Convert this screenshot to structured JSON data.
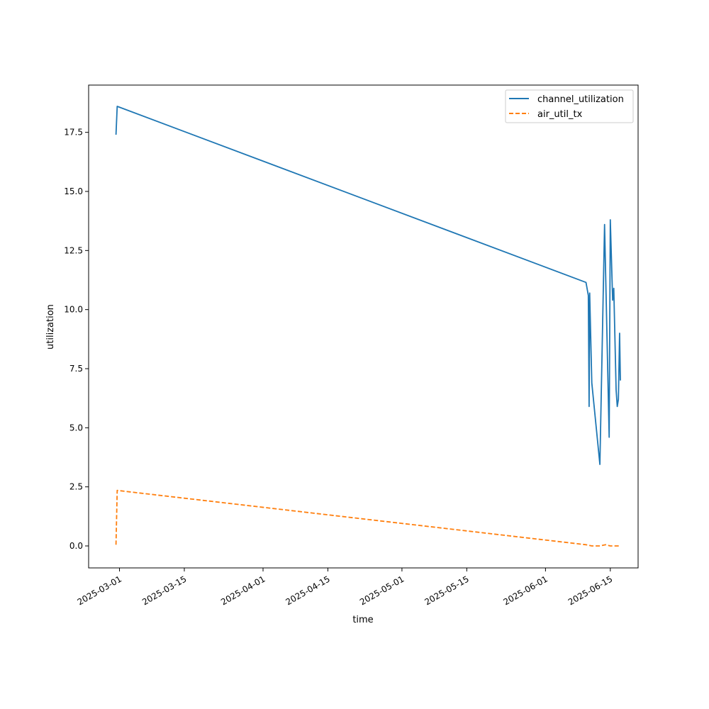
{
  "chart_data": {
    "type": "line",
    "title": "",
    "xlabel": "time",
    "ylabel": "utilization",
    "xlim": [
      "2025-02-22T08:00",
      "2025-06-21T00:00"
    ],
    "ylim": [
      -0.93,
      19.5
    ],
    "xticks": [
      "2025-03-01",
      "2025-03-15",
      "2025-04-01",
      "2025-04-15",
      "2025-05-01",
      "2025-05-15",
      "2025-06-01",
      "2025-06-15"
    ],
    "yticks": [
      "0.0",
      "2.5",
      "5.0",
      "7.5",
      "10.0",
      "12.5",
      "15.0",
      "17.5"
    ],
    "grid": false,
    "legend": "top-right",
    "series": [
      {
        "name": "channel_utilization",
        "color": "#1f77b4",
        "style": "solid",
        "points": [
          [
            "2025-02-28T06:00",
            17.4
          ],
          [
            "2025-02-28T12:00",
            18.6
          ],
          [
            "2025-06-09T18:00",
            11.15
          ],
          [
            "2025-06-10T06:00",
            10.6
          ],
          [
            "2025-06-10T10:00",
            5.9
          ],
          [
            "2025-06-10T13:00",
            10.7
          ],
          [
            "2025-06-11T00:00",
            6.9
          ],
          [
            "2025-06-12T18:00",
            3.45
          ],
          [
            "2025-06-13T18:00",
            13.6
          ],
          [
            "2025-06-14T18:00",
            4.6
          ],
          [
            "2025-06-15T00:00",
            13.8
          ],
          [
            "2025-06-15T12:00",
            10.4
          ],
          [
            "2025-06-15T18:00",
            10.9
          ],
          [
            "2025-06-16T06:00",
            6.6
          ],
          [
            "2025-06-16T12:00",
            5.9
          ],
          [
            "2025-06-16T18:00",
            6.2
          ],
          [
            "2025-06-17T00:00",
            9.0
          ],
          [
            "2025-06-17T04:00",
            7.0
          ]
        ]
      },
      {
        "name": "air_util_tx",
        "color": "#ff7f0e",
        "style": "dashed",
        "points": [
          [
            "2025-02-28T06:00",
            0.05
          ],
          [
            "2025-02-28T12:00",
            2.35
          ],
          [
            "2025-06-09T18:00",
            0.05
          ],
          [
            "2025-06-11T00:00",
            0.0
          ],
          [
            "2025-06-12T18:00",
            0.0
          ],
          [
            "2025-06-14T00:00",
            0.05
          ],
          [
            "2025-06-15T00:00",
            0.0
          ],
          [
            "2025-06-16T00:00",
            0.0
          ],
          [
            "2025-06-17T04:00",
            0.0
          ]
        ]
      }
    ]
  }
}
